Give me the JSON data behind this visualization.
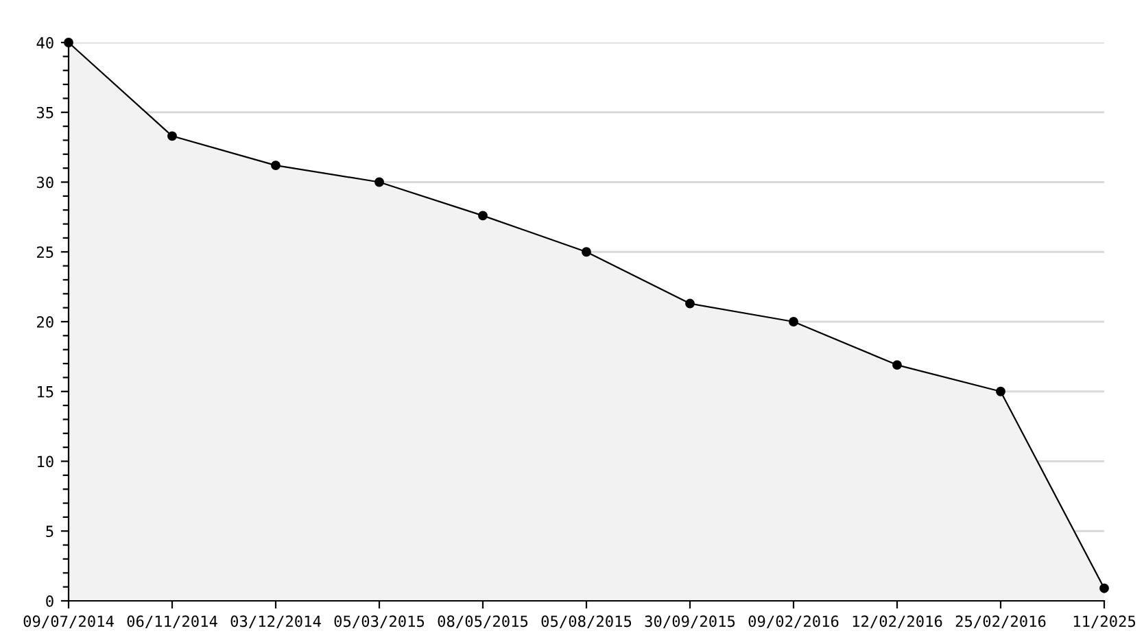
{
  "chart_data": {
    "type": "area",
    "categories": [
      "09/07/2014",
      "06/11/2014",
      "03/12/2014",
      "05/03/2015",
      "08/05/2015",
      "05/08/2015",
      "30/09/2015",
      "09/02/2016",
      "12/02/2016",
      "25/02/2016",
      "11/2025"
    ],
    "series": [
      {
        "color": "#000000",
        "values": [
          40,
          33.3,
          31.2,
          30,
          27.6,
          25,
          21.3,
          20,
          16.9,
          15,
          0.9
        ]
      }
    ],
    "ylim": [
      0,
      40
    ],
    "yticks": [
      0,
      5,
      10,
      15,
      20,
      25,
      30,
      35,
      40
    ],
    "grid": "y",
    "marker": "circle",
    "line_style": "solid",
    "legend": false
  }
}
